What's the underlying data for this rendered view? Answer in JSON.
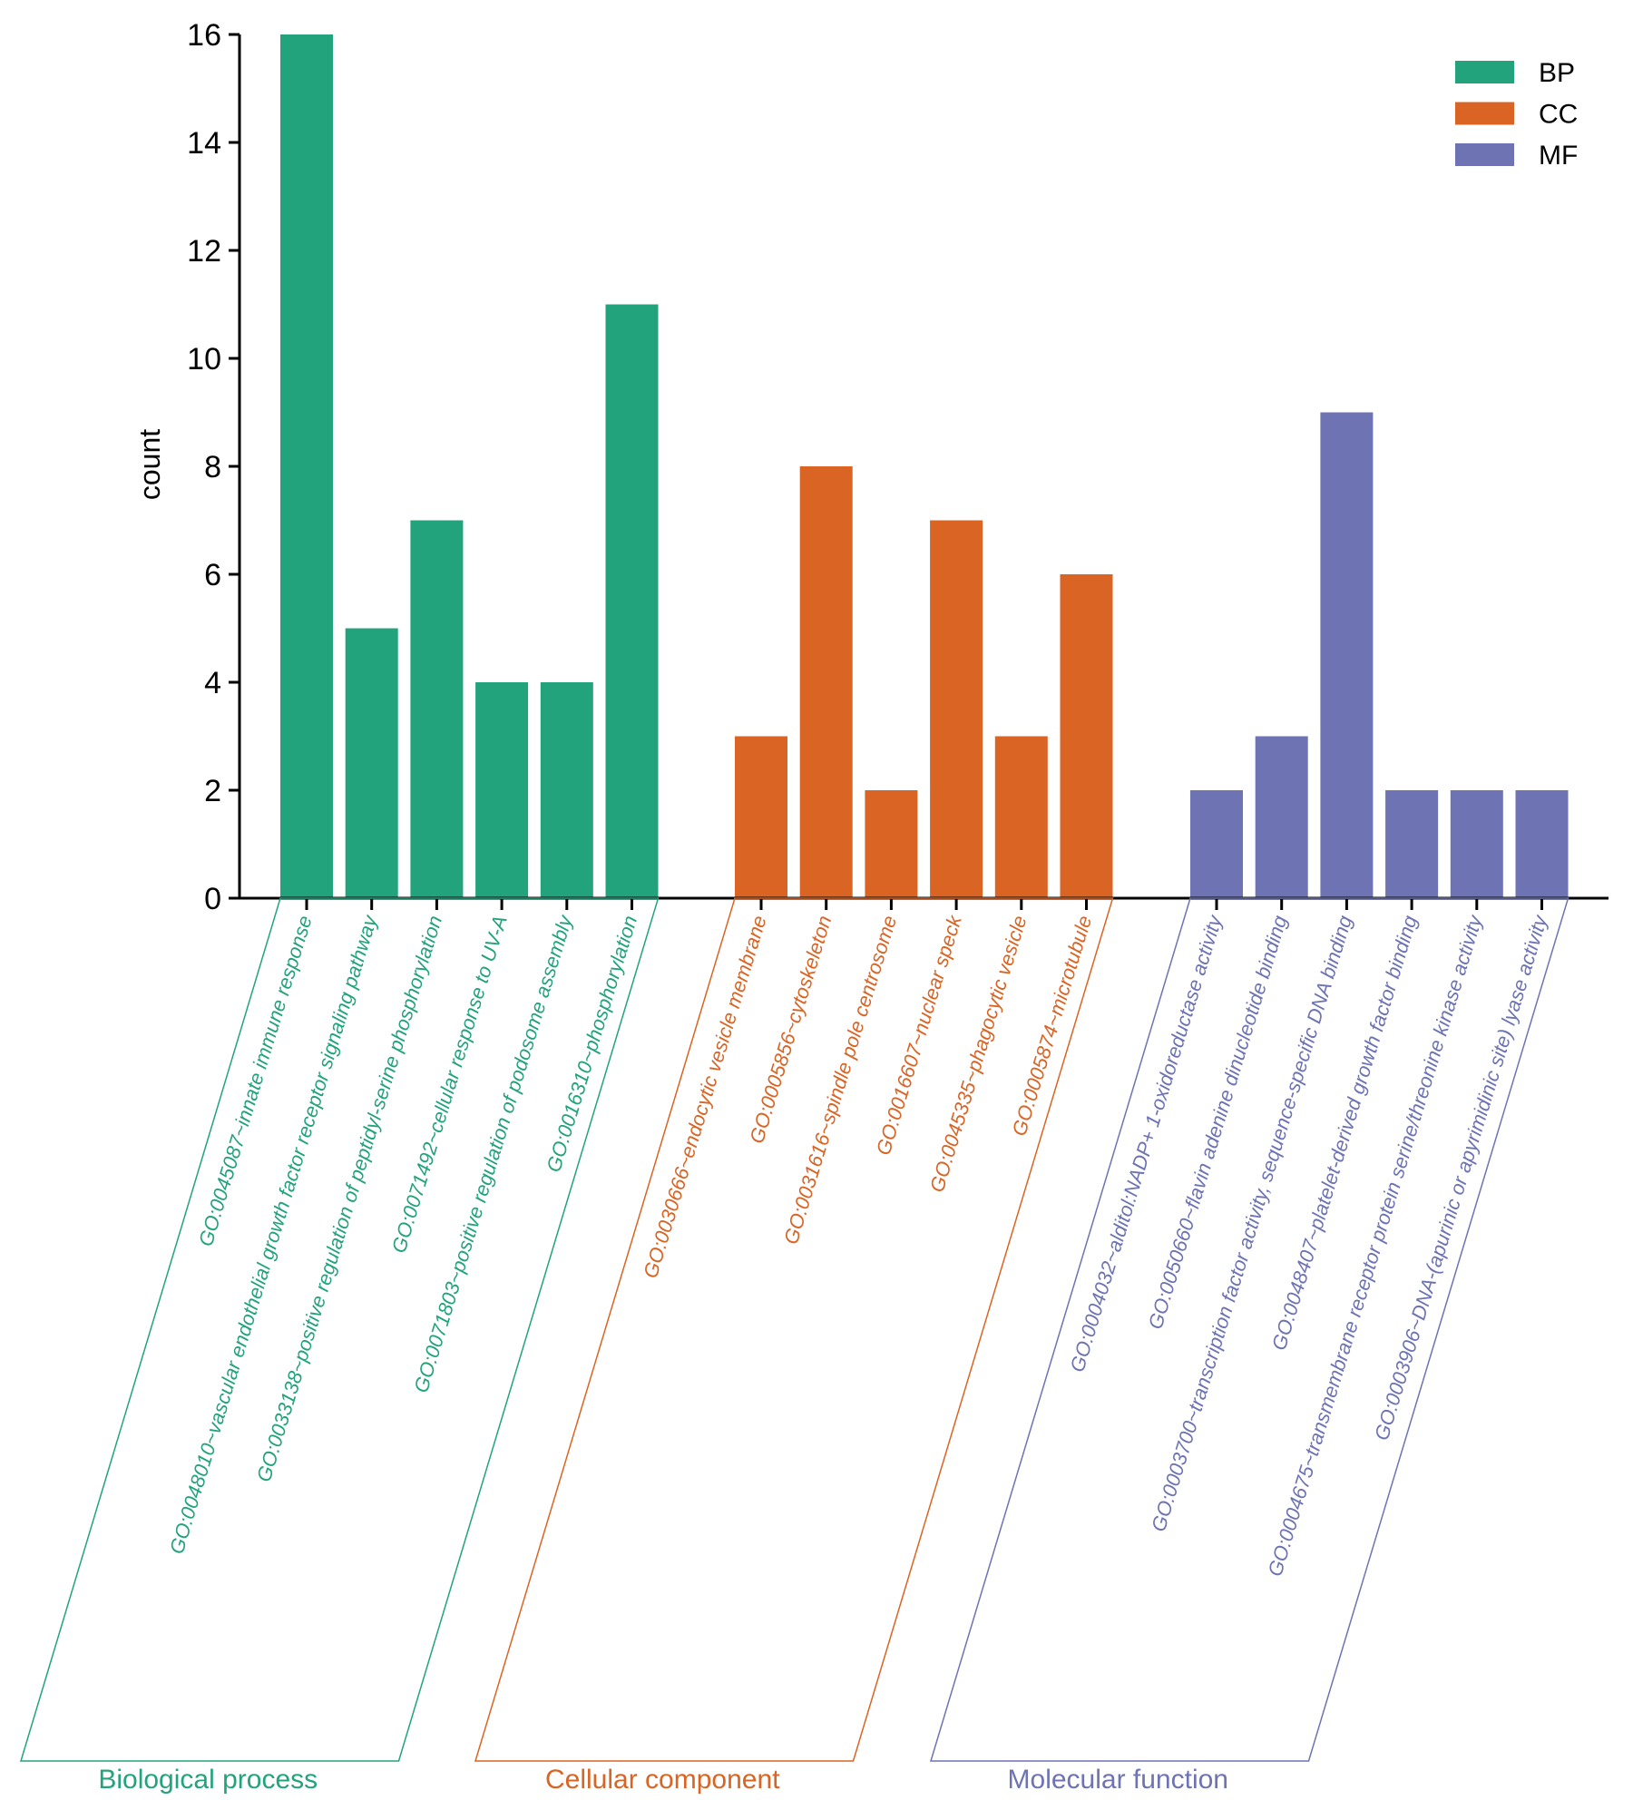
{
  "chart_data": {
    "type": "bar",
    "ylabel": "count",
    "ylim": [
      0,
      16
    ],
    "yticks": [
      0,
      2,
      4,
      6,
      8,
      10,
      12,
      14,
      16
    ],
    "grid": false,
    "legend_position": "top-right",
    "legend": [
      {
        "name": "BP",
        "color": "#23a37c"
      },
      {
        "name": "CC",
        "color": "#d96424"
      },
      {
        "name": "MF",
        "color": "#6d73b3"
      }
    ],
    "groups": [
      {
        "name": "Biological process",
        "series": "BP",
        "color": "#23a37c",
        "categories": [
          "GO:0045087~innate immune response",
          "GO:0048010~vascular endothelial growth factor receptor signaling pathway",
          "GO:0033138~positive regulation of peptidyl-serine phosphorylation",
          "GO:0071492~cellular response to UV-A",
          "GO:0071803~positive regulation of podosome assembly",
          "GO:0016310~phosphorylation"
        ],
        "values": [
          16,
          5,
          7,
          4,
          4,
          11
        ]
      },
      {
        "name": "Cellular component",
        "series": "CC",
        "color": "#d96424",
        "categories": [
          "GO:0030666~endocytic vesicle membrane",
          "GO:0005856~cytoskeleton",
          "GO:0031616~spindle pole centrosome",
          "GO:0016607~nuclear speck",
          "GO:0045335~phagocytic vesicle",
          "GO:0005874~microtubule"
        ],
        "values": [
          3,
          8,
          2,
          7,
          3,
          6
        ]
      },
      {
        "name": "Molecular function",
        "series": "MF",
        "color": "#6d73b3",
        "categories": [
          "GO:0004032~alditol:NADP+ 1-oxidoreductase activity",
          "GO:0050660~flavin adenine dinucleotide binding",
          "GO:0003700~transcription factor activity, sequence-specific DNA binding",
          "GO:0048407~platelet-derived growth factor binding",
          "GO:0004675~transmembrane receptor protein serine/threonine kinase activity",
          "GO:0003906~DNA-(apurinic or apyrimidinic site) lyase activity"
        ],
        "values": [
          2,
          3,
          9,
          2,
          2,
          2
        ]
      }
    ]
  }
}
